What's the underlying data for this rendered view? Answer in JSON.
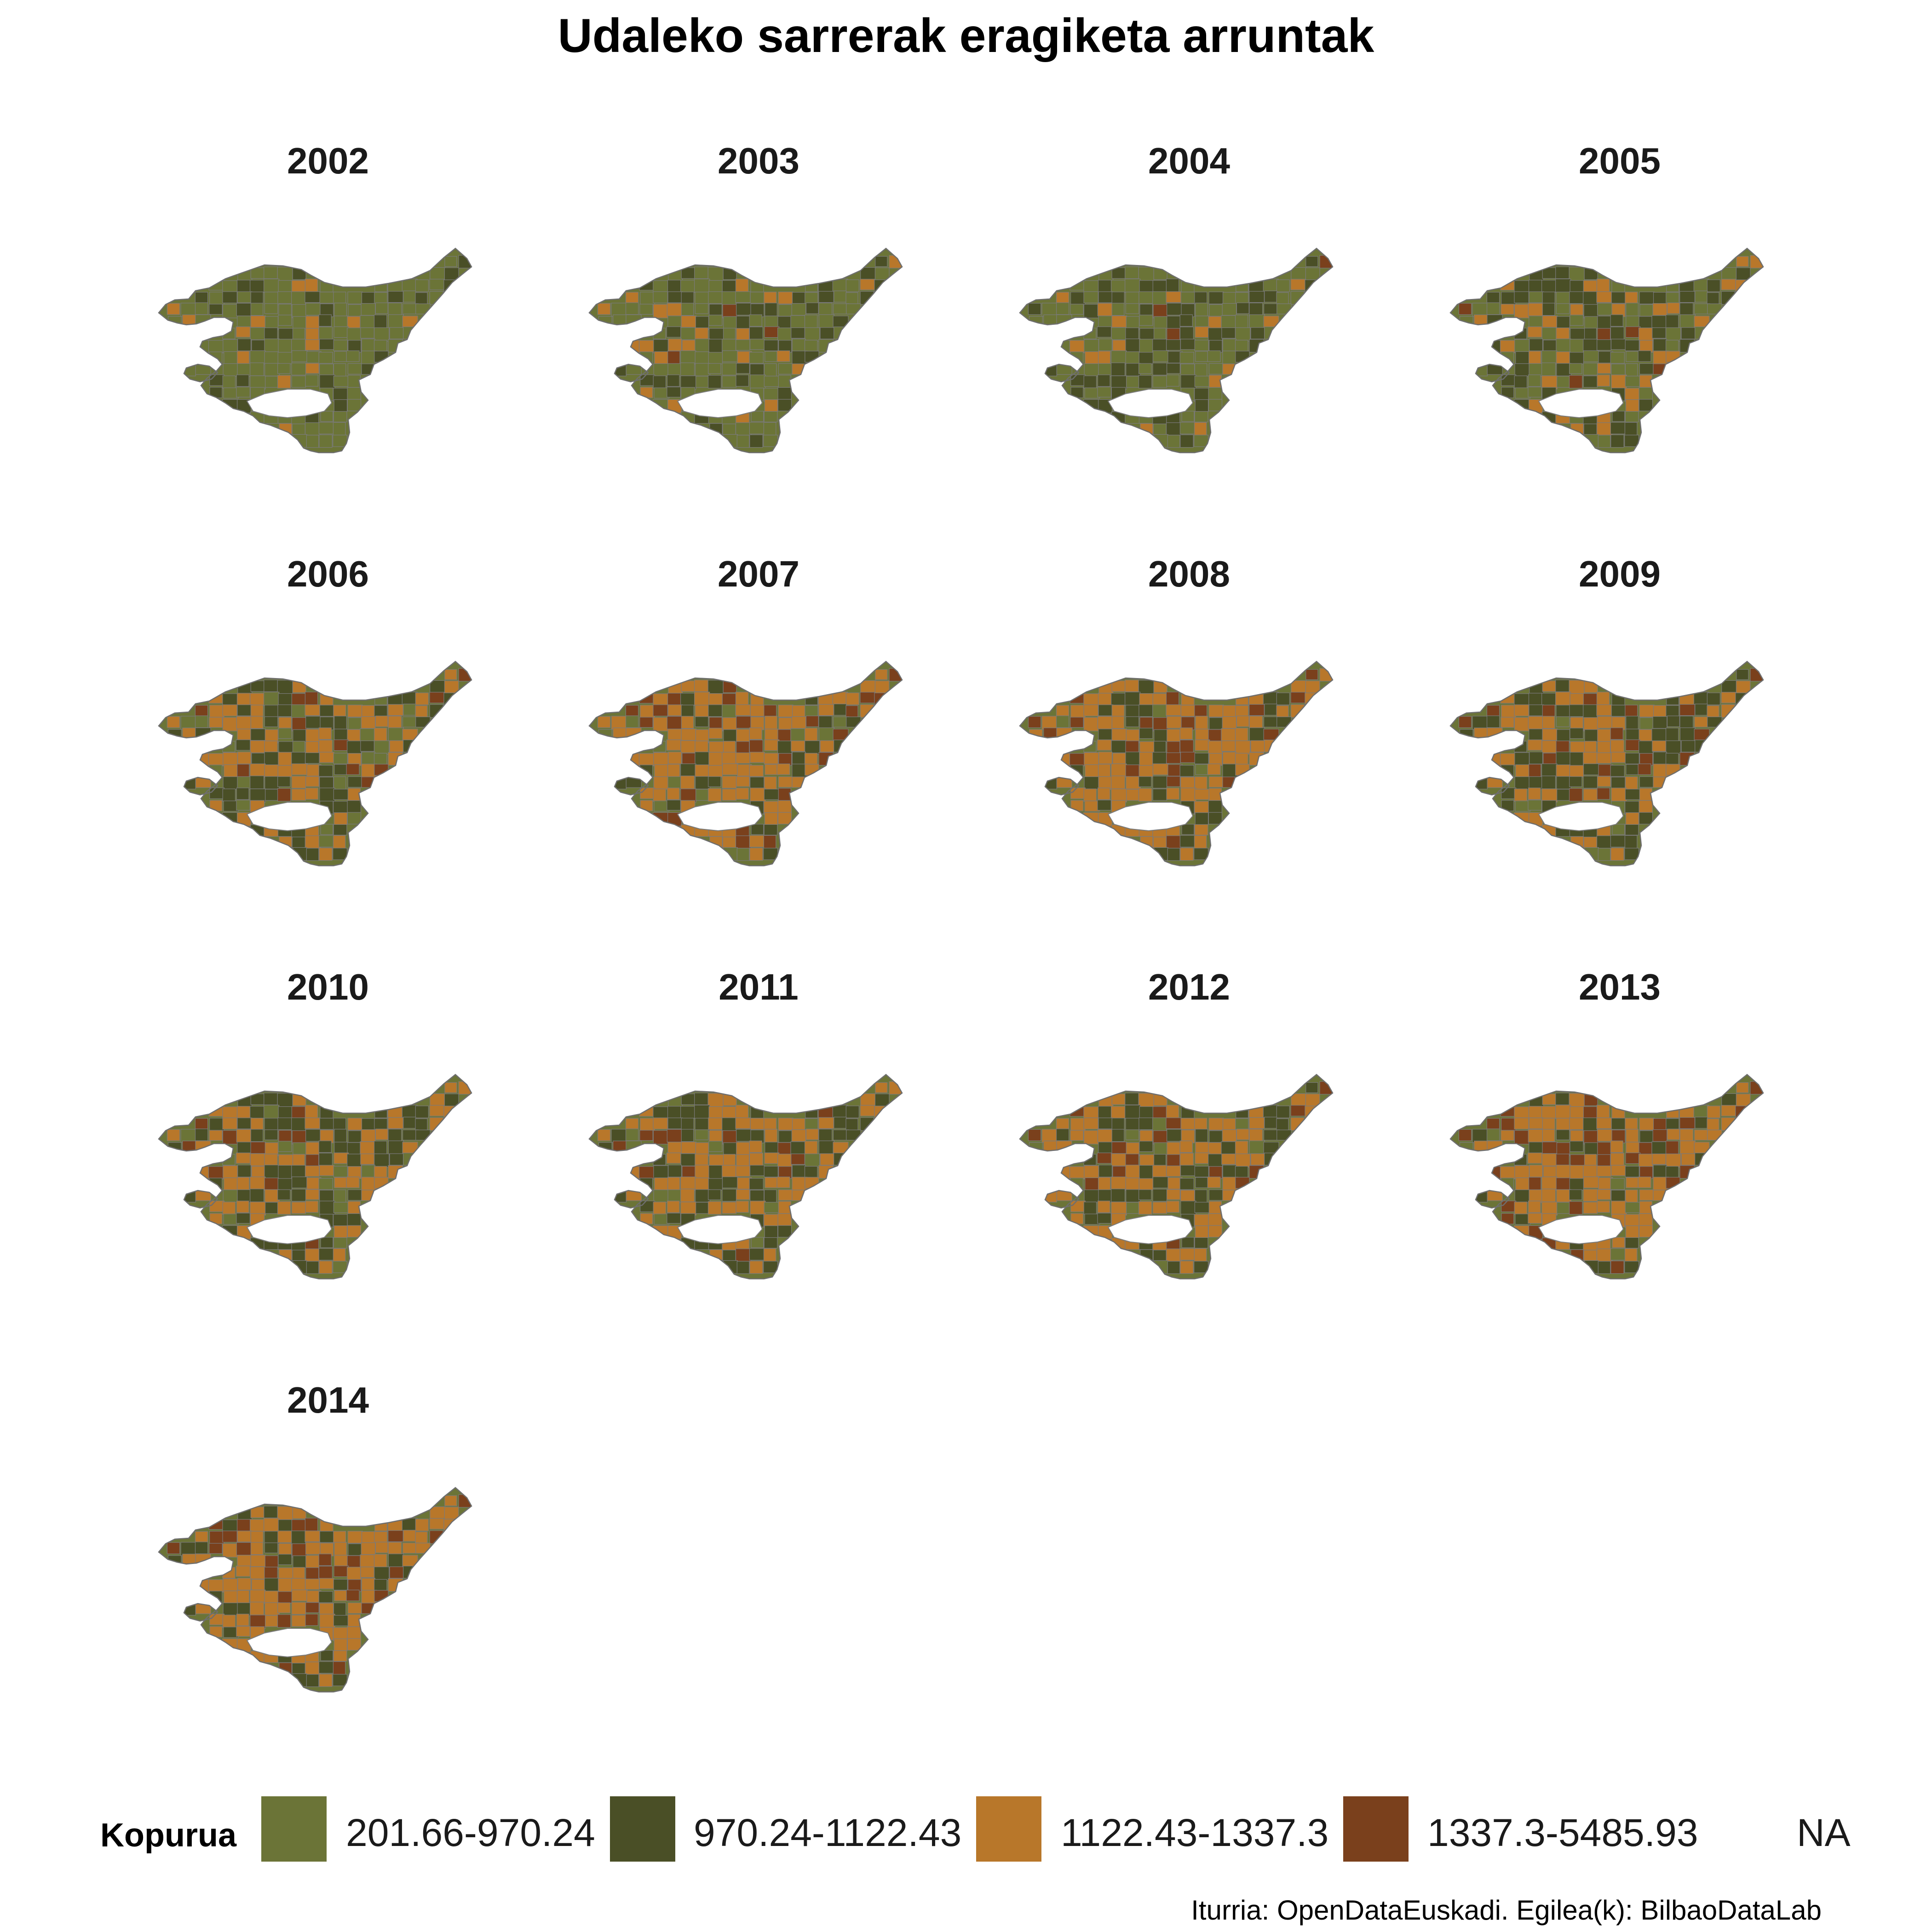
{
  "title": "Udaleko sarrerak eragiketa arruntak",
  "caption": "Iturria: OpenDataEuskadi. Egilea(k): BilbaoDataLab",
  "legend": {
    "title": "Kopurua",
    "items": [
      {
        "label": "201.66-970.24",
        "color": "#6b7437"
      },
      {
        "label": "970.24-1122.43",
        "color": "#4a4f26"
      },
      {
        "label": "1122.43-1337.3",
        "color": "#b8772a"
      },
      {
        "label": "1337.3-5485.93",
        "color": "#7a401c"
      },
      {
        "label": "NA",
        "color": "#ffffff"
      }
    ]
  },
  "chart_data": {
    "type": "choropleth-map",
    "facets": [
      {
        "year": "2002",
        "class_shares": [
          0.6,
          0.18,
          0.18,
          0.04
        ]
      },
      {
        "year": "2003",
        "class_shares": [
          0.52,
          0.22,
          0.17,
          0.09
        ]
      },
      {
        "year": "2004",
        "class_shares": [
          0.5,
          0.27,
          0.16,
          0.07
        ]
      },
      {
        "year": "2005",
        "class_shares": [
          0.38,
          0.28,
          0.22,
          0.12
        ]
      },
      {
        "year": "2006",
        "class_shares": [
          0.26,
          0.26,
          0.29,
          0.19
        ]
      },
      {
        "year": "2007",
        "class_shares": [
          0.16,
          0.22,
          0.32,
          0.3
        ]
      },
      {
        "year": "2008",
        "class_shares": [
          0.14,
          0.22,
          0.35,
          0.29
        ]
      },
      {
        "year": "2009",
        "class_shares": [
          0.18,
          0.3,
          0.28,
          0.24
        ]
      },
      {
        "year": "2010",
        "class_shares": [
          0.22,
          0.3,
          0.28,
          0.2
        ]
      },
      {
        "year": "2011",
        "class_shares": [
          0.18,
          0.3,
          0.3,
          0.22
        ]
      },
      {
        "year": "2012",
        "class_shares": [
          0.16,
          0.3,
          0.32,
          0.22
        ]
      },
      {
        "year": "2013",
        "class_shares": [
          0.12,
          0.2,
          0.38,
          0.3
        ]
      },
      {
        "year": "2014",
        "class_shares": [
          0.1,
          0.2,
          0.4,
          0.3
        ]
      }
    ]
  }
}
